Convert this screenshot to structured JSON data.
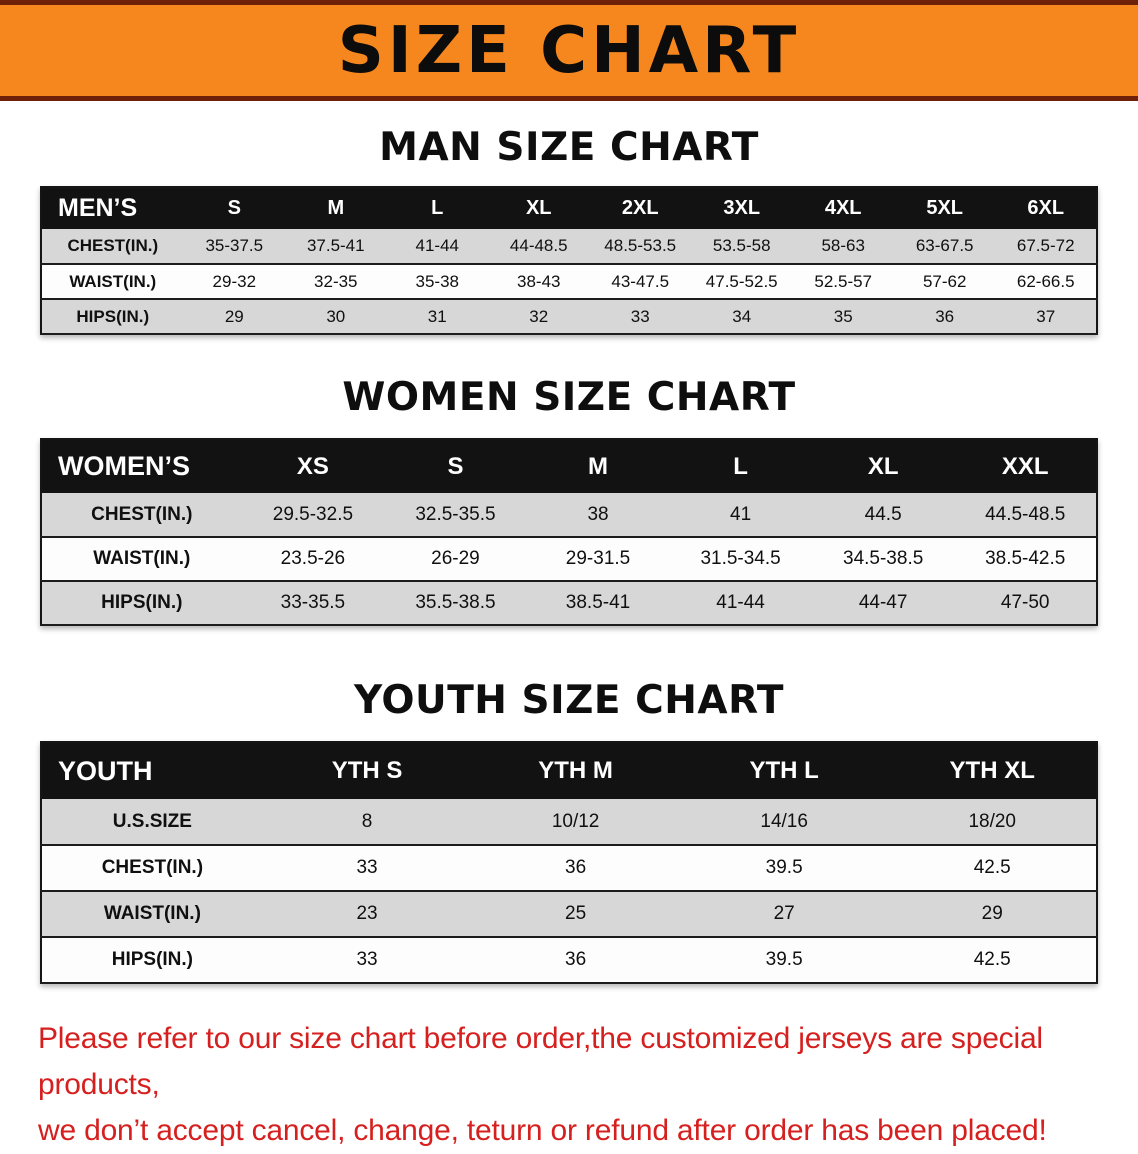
{
  "banner": {
    "title": "SIZE CHART",
    "bg_color": "#f6871f",
    "edge_color": "#6f2008"
  },
  "sections": [
    {
      "heading": "MAN SIZE CHART",
      "table": {
        "header": [
          "MEN’S",
          "S",
          "M",
          "L",
          "XL",
          "2XL",
          "3XL",
          "4XL",
          "5XL",
          "6XL"
        ],
        "rows": [
          [
            "CHEST(IN.)",
            "35-37.5",
            "37.5-41",
            "41-44",
            "44-48.5",
            "48.5-53.5",
            "53.5-58",
            "58-63",
            "63-67.5",
            "67.5-72"
          ],
          [
            "WAIST(IN.)",
            "29-32",
            "32-35",
            "35-38",
            "38-43",
            "43-47.5",
            "47.5-52.5",
            "52.5-57",
            "57-62",
            "62-66.5"
          ],
          [
            "HIPS(IN.)",
            "29",
            "30",
            "31",
            "32",
            "33",
            "34",
            "35",
            "36",
            "37"
          ]
        ]
      }
    },
    {
      "heading": "WOMEN SIZE CHART",
      "table": {
        "header": [
          "WOMEN’S",
          "XS",
          "S",
          "M",
          "L",
          "XL",
          "XXL"
        ],
        "rows": [
          [
            "CHEST(IN.)",
            "29.5-32.5",
            "32.5-35.5",
            "38",
            "41",
            "44.5",
            "44.5-48.5"
          ],
          [
            "WAIST(IN.)",
            "23.5-26",
            "26-29",
            "29-31.5",
            "31.5-34.5",
            "34.5-38.5",
            "38.5-42.5"
          ],
          [
            "HIPS(IN.)",
            "33-35.5",
            "35.5-38.5",
            "38.5-41",
            "41-44",
            "44-47",
            "47-50"
          ]
        ]
      }
    },
    {
      "heading": "YOUTH SIZE CHART",
      "table": {
        "header": [
          "YOUTH",
          "YTH S",
          "YTH M",
          "YTH L",
          "YTH XL"
        ],
        "rows": [
          [
            "U.S.SIZE",
            "8",
            "10/12",
            "14/16",
            "18/20"
          ],
          [
            "CHEST(IN.)",
            "33",
            "36",
            "39.5",
            "42.5"
          ],
          [
            "WAIST(IN.)",
            "23",
            "25",
            "27",
            "29"
          ],
          [
            "HIPS(IN.)",
            "33",
            "36",
            "39.5",
            "42.5"
          ]
        ]
      }
    }
  ],
  "disclaimer": {
    "line1": "Please refer to our size chart before order,the customized jerseys are special products,",
    "line2": "we don’t accept cancel, change, teturn or refund after order has been placed!",
    "color": "#d6201f"
  }
}
